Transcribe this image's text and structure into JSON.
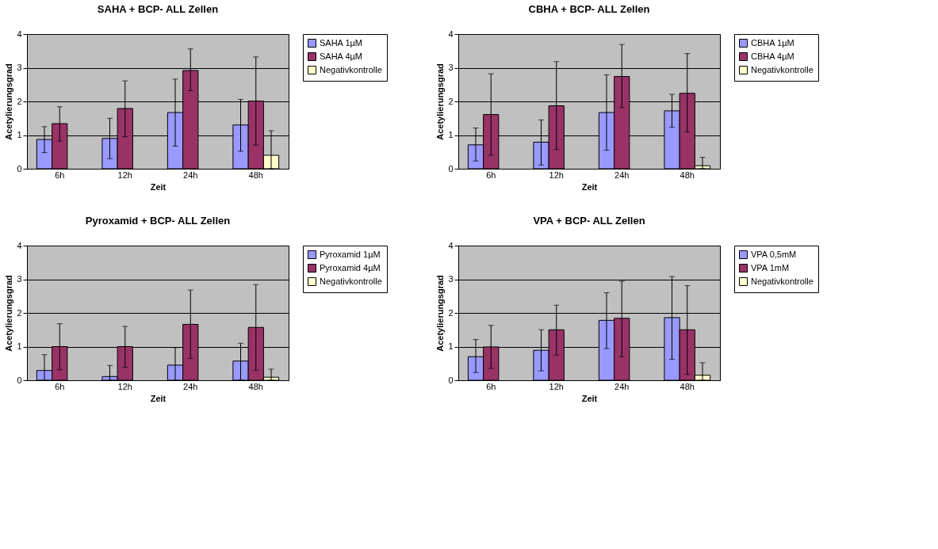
{
  "chart_data": [
    {
      "type": "bar",
      "title": "SAHA + BCP- ALL Zellen",
      "xlabel": "Zeit",
      "ylabel": "Acetylierungsgrad",
      "categories": [
        "6h",
        "12h",
        "24h",
        "48h"
      ],
      "series": [
        {
          "name": "SAHA 1µM",
          "color": "#9999ff",
          "values": [
            0.87,
            0.9,
            1.67,
            1.3
          ],
          "errors": [
            [
              0.48,
              1.25
            ],
            [
              0.3,
              1.5
            ],
            [
              0.67,
              2.66
            ],
            [
              0.52,
              2.06
            ]
          ]
        },
        {
          "name": "SAHA 4µM",
          "color": "#993366",
          "values": [
            1.34,
            1.79,
            2.92,
            2.01
          ],
          "errors": [
            [
              0.82,
              1.84
            ],
            [
              0.95,
              2.61
            ],
            [
              2.32,
              3.56
            ],
            [
              0.7,
              3.32
            ]
          ]
        },
        {
          "name": "Negativkontrolle",
          "color": "#ffffcc",
          "values": [
            null,
            null,
            null,
            0.4
          ],
          "errors": [
            null,
            null,
            null,
            [
              0,
              1.13
            ]
          ]
        }
      ],
      "ylim": [
        0,
        4
      ],
      "yticks": [
        0,
        1,
        2,
        3,
        4
      ],
      "grid": "y",
      "legend": "right"
    },
    {
      "type": "bar",
      "title": "CBHA + BCP- ALL Zellen",
      "xlabel": "Zeit",
      "ylabel": "Acetylierungsgrad",
      "categories": [
        "6h",
        "12h",
        "24h",
        "48h"
      ],
      "series": [
        {
          "name": "CBHA 1µM",
          "color": "#9999ff",
          "values": [
            0.71,
            0.79,
            1.67,
            1.72
          ],
          "errors": [
            [
              0.23,
              1.21
            ],
            [
              0.11,
              1.45
            ],
            [
              0.55,
              2.79
            ],
            [
              1.23,
              2.21
            ]
          ]
        },
        {
          "name": "CBHA 4µM",
          "color": "#993366",
          "values": [
            1.61,
            1.87,
            2.74,
            2.24
          ],
          "errors": [
            [
              0.4,
              2.82
            ],
            [
              0.57,
              3.18
            ],
            [
              1.82,
              3.69
            ],
            [
              1.09,
              3.42
            ]
          ]
        },
        {
          "name": "Negativkontrolle",
          "color": "#ffffcc",
          "values": [
            null,
            null,
            null,
            0.09
          ],
          "errors": [
            null,
            null,
            null,
            [
              0,
              0.34
            ]
          ]
        }
      ],
      "ylim": [
        0,
        4
      ],
      "yticks": [
        0,
        1,
        2,
        3,
        4
      ],
      "grid": "y",
      "legend": "right"
    },
    {
      "type": "bar",
      "title": "Pyroxamid + BCP- ALL Zellen",
      "xlabel": "Zeit",
      "ylabel": "Acetylierungsgrad",
      "categories": [
        "6h",
        "12h",
        "24h",
        "48h"
      ],
      "series": [
        {
          "name": "Pyroxamid 1µM",
          "color": "#9999ff",
          "values": [
            0.29,
            0.11,
            0.45,
            0.57
          ],
          "errors": [
            [
              0,
              0.76
            ],
            [
              0,
              0.44
            ],
            [
              0,
              0.97
            ],
            [
              0.01,
              1.1
            ]
          ]
        },
        {
          "name": "Pyroxamid 4µM",
          "color": "#993366",
          "values": [
            1.0,
            1.0,
            1.66,
            1.57
          ],
          "errors": [
            [
              0.31,
              1.68
            ],
            [
              0.38,
              1.6
            ],
            [
              0.65,
              2.68
            ],
            [
              0.29,
              2.84
            ]
          ]
        },
        {
          "name": "Negativkontrolle",
          "color": "#ffffcc",
          "values": [
            null,
            null,
            null,
            0.09
          ],
          "errors": [
            null,
            null,
            null,
            [
              0,
              0.33
            ]
          ]
        }
      ],
      "ylim": [
        0,
        4
      ],
      "yticks": [
        0,
        1,
        2,
        3,
        4
      ],
      "grid": "y",
      "legend": "right"
    },
    {
      "type": "bar",
      "title": "VPA + BCP- ALL Zellen",
      "xlabel": "Zeit",
      "ylabel": "Acetylierungsgrad",
      "categories": [
        "6h",
        "12h",
        "24h",
        "48h"
      ],
      "series": [
        {
          "name": "VPA 0,5mM",
          "color": "#9999ff",
          "values": [
            0.7,
            0.89,
            1.78,
            1.86
          ],
          "errors": [
            [
              0.23,
              1.21
            ],
            [
              0.28,
              1.5
            ],
            [
              0.94,
              2.6
            ],
            [
              0.62,
              3.08
            ]
          ]
        },
        {
          "name": "VPA 1mM",
          "color": "#993366",
          "values": [
            0.99,
            1.5,
            1.84,
            1.5
          ],
          "errors": [
            [
              0.35,
              1.63
            ],
            [
              0.75,
              2.23
            ],
            [
              0.7,
              2.94
            ],
            [
              0.17,
              2.81
            ]
          ]
        },
        {
          "name": "Negativkontrolle",
          "color": "#ffffcc",
          "values": [
            null,
            null,
            null,
            0.15
          ],
          "errors": [
            null,
            null,
            null,
            [
              0,
              0.52
            ]
          ]
        }
      ],
      "ylim": [
        0,
        4
      ],
      "yticks": [
        0,
        1,
        2,
        3,
        4
      ],
      "grid": "y",
      "legend": "right"
    }
  ]
}
